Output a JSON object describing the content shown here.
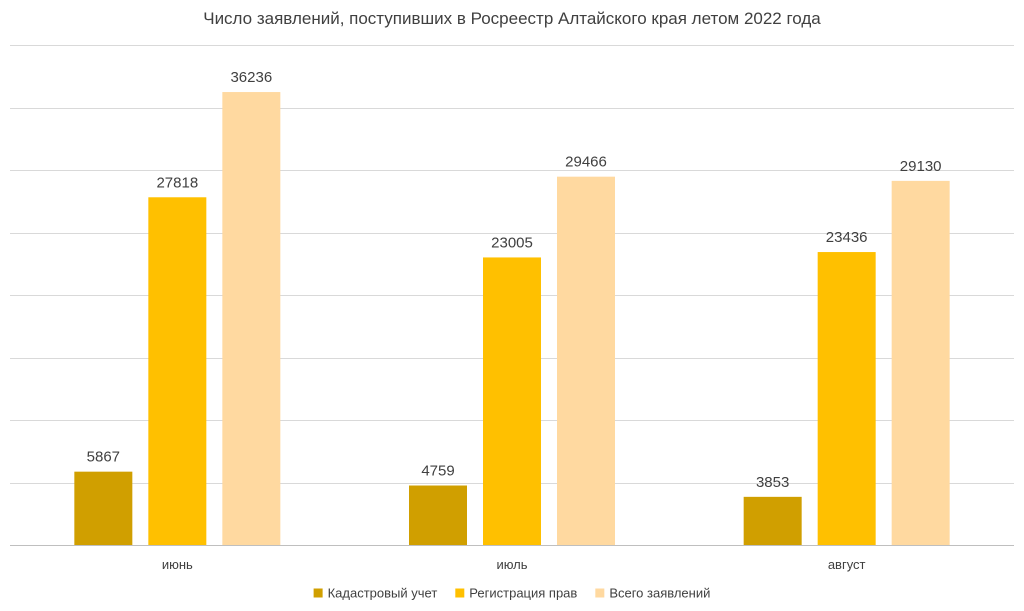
{
  "chart_data": {
    "type": "bar",
    "title": "Число заявлений, поступивших в Росреестр Алтайского края  летом 2022 года",
    "xlabel": "",
    "ylabel": "",
    "categories": [
      "июнь",
      "июль",
      "август"
    ],
    "series": [
      {
        "name": "Кадастровый учет",
        "color": "#d09f00",
        "values": [
          5867,
          4759,
          3853
        ]
      },
      {
        "name": "Регистрация прав",
        "color": "#ffc000",
        "values": [
          27818,
          23005,
          23436
        ]
      },
      {
        "name": "Всего заявлений",
        "color": "#ffd9a0",
        "values": [
          36236,
          29466,
          29130
        ]
      }
    ],
    "ylim": [
      0,
      40000
    ],
    "grid": true,
    "legend": "bottom",
    "show_axis_ticks": false
  }
}
